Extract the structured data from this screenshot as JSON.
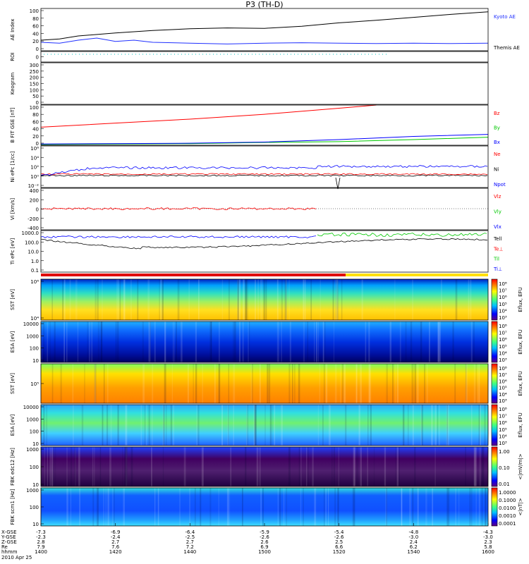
{
  "title": "P3 (TH-D)",
  "colors": {
    "black": "#000000",
    "blue": "#0000ff",
    "red": "#ff0000",
    "green": "#00c800",
    "ae_blue": "#2030ff",
    "teal": "#00c0c0"
  },
  "chart_data": {
    "type": "line",
    "time_axis": {
      "date": "2010 Apr 25",
      "ticks": [
        "1400",
        "1420",
        "1440",
        "1500",
        "1520",
        "1540",
        "1600"
      ],
      "ephemeris_labels": [
        "X-GSE",
        "Y-GSE",
        "Z-GSE",
        "Re",
        "hhmm"
      ],
      "x_gse": [
        "-7.3",
        "-6.9",
        "-6.4",
        "-5.9",
        "-5.4",
        "-4.8",
        "-4.3"
      ],
      "y_gse": [
        "-2.3",
        "-2.4",
        "-2.5",
        "-2.6",
        "-2.6",
        "-3.0",
        "-3.0"
      ],
      "z_gse": [
        "2.8",
        "2.7",
        "2.7",
        "2.6",
        "2.5",
        "2.4",
        "2.3"
      ],
      "re": [
        "7.9",
        "7.6",
        "7.2",
        "6.9",
        "6.6",
        "6.2",
        "5.8"
      ]
    },
    "panels": [
      {
        "id": "ae",
        "ylabel": "AE Index",
        "yticks": [
          "100",
          "80",
          "60",
          "40",
          "20",
          "0"
        ],
        "legend": [
          "Kyoto AE",
          "Themis AE"
        ],
        "ylim": [
          0,
          100
        ],
        "series": [
          {
            "name": "Themis AE",
            "color": "#000000",
            "x": [
              0,
              5,
              10,
              20,
              30,
              40,
              50,
              60,
              70,
              80,
              90,
              100,
              110,
              120
            ],
            "values": [
              25,
              28,
              35,
              42,
              48,
              52,
              54,
              53,
              58,
              66,
              72,
              79,
              86,
              92
            ]
          },
          {
            "name": "Kyoto AE",
            "color": "#2030ff",
            "x": [
              0,
              5,
              10,
              15,
              20,
              25,
              30,
              40,
              50,
              60,
              70,
              80,
              90,
              100,
              110,
              120
            ],
            "values": [
              20,
              18,
              25,
              30,
              22,
              25,
              20,
              18,
              16,
              18,
              19,
              18,
              17,
              18,
              17,
              18
            ]
          }
        ]
      },
      {
        "id": "roi",
        "ylabel": "ROI",
        "yticks": [
          "0"
        ]
      },
      {
        "id": "keogram",
        "ylabel": "Keogram",
        "yticks": [
          "300",
          "250",
          "200",
          "150",
          "100",
          "50",
          "0"
        ]
      },
      {
        "id": "bfield",
        "ylabel": "B FIT GSE [nT]",
        "yticks": [
          "100",
          "80",
          "60",
          "40",
          "20",
          "0"
        ],
        "legend": [
          "Bz",
          "By",
          "Bx"
        ],
        "ylim": [
          0,
          100
        ],
        "series": [
          {
            "name": "Bz",
            "color": "#ff0000",
            "x": [
              0,
              20,
              40,
              60,
              80,
              90
            ],
            "values": [
              45,
              55,
              65,
              77,
              92,
              100
            ]
          },
          {
            "name": "By",
            "color": "#00c800",
            "x": [
              0,
              40,
              60,
              80,
              100,
              120
            ],
            "values": [
              2,
              4,
              7,
              9,
              14,
              20
            ]
          },
          {
            "name": "Bx",
            "color": "#0000ff",
            "x": [
              0,
              40,
              60,
              80,
              100,
              120
            ],
            "values": [
              3,
              5,
              8,
              14,
              22,
              27
            ]
          }
        ]
      },
      {
        "id": "density",
        "ylabel": "Ni ePc [1/cc]",
        "yticks": [
          "10⁶",
          "10⁴",
          "10²",
          "10⁰",
          "10⁻²"
        ],
        "legend": [
          "Ne",
          "Ni",
          "Npot"
        ]
      },
      {
        "id": "velocity",
        "ylabel": "Vi [km/s]",
        "yticks": [
          "400",
          "200",
          "0",
          "-200",
          "-400"
        ],
        "legend": [
          "Vlz",
          "Vly",
          "Vlx"
        ]
      },
      {
        "id": "temperature",
        "ylabel": "Ti ePc [eV]",
        "yticks": [
          "1000.0",
          "100.0",
          "10.0",
          "1.0",
          "0.1"
        ],
        "legend": [
          "Tell",
          "Te⊥",
          "Til",
          "Ti⊥"
        ]
      },
      {
        "id": "sst_i",
        "ylabel": "SST [eV]",
        "yticks": [
          "10⁶",
          "10⁴"
        ],
        "colorbar": "Eflux, EFU",
        "cbticks": [
          "10⁸",
          "10⁷",
          "10⁶",
          "10⁵",
          "10⁴",
          "10³"
        ]
      },
      {
        "id": "esa_i",
        "ylabel": "ESA [eV]",
        "yticks": [
          "10000",
          "1000",
          "100",
          "10"
        ],
        "colorbar": "Eflux, EFU",
        "cbticks": [
          "10⁸",
          "10⁷",
          "10⁶",
          "10⁵",
          "10⁴",
          "10³"
        ]
      },
      {
        "id": "sst_e",
        "ylabel": "SST [eV]",
        "yticks": [
          "10⁵"
        ],
        "colorbar": "Eflux, EFU",
        "cbticks": [
          "10⁸",
          "10⁷",
          "10⁶",
          "10⁵",
          "10⁴",
          "10³"
        ]
      },
      {
        "id": "esa_e",
        "ylabel": "ESA [eV]",
        "yticks": [
          "10000",
          "1000",
          "100",
          "10"
        ],
        "colorbar": "Eflux, EFU",
        "cbticks": [
          "10⁸",
          "10⁷",
          "10⁶",
          "10⁵",
          "10⁴",
          "10³"
        ]
      },
      {
        "id": "fbk_e",
        "ylabel": "FBK edc12 [Hz]",
        "yticks": [
          "1000",
          "100",
          "10"
        ],
        "colorbar": "<|mV/m|>",
        "cbticks": [
          "1.00",
          "0.10",
          "0.01"
        ]
      },
      {
        "id": "fbk_b",
        "ylabel": "FBK scm1 [Hz]",
        "yticks": [
          "1000",
          "100",
          "10"
        ],
        "colorbar": "<|nT|>",
        "cbticks": [
          "1.0000",
          "0.1000",
          "0.0100",
          "0.0010",
          "0.0001"
        ]
      }
    ]
  }
}
